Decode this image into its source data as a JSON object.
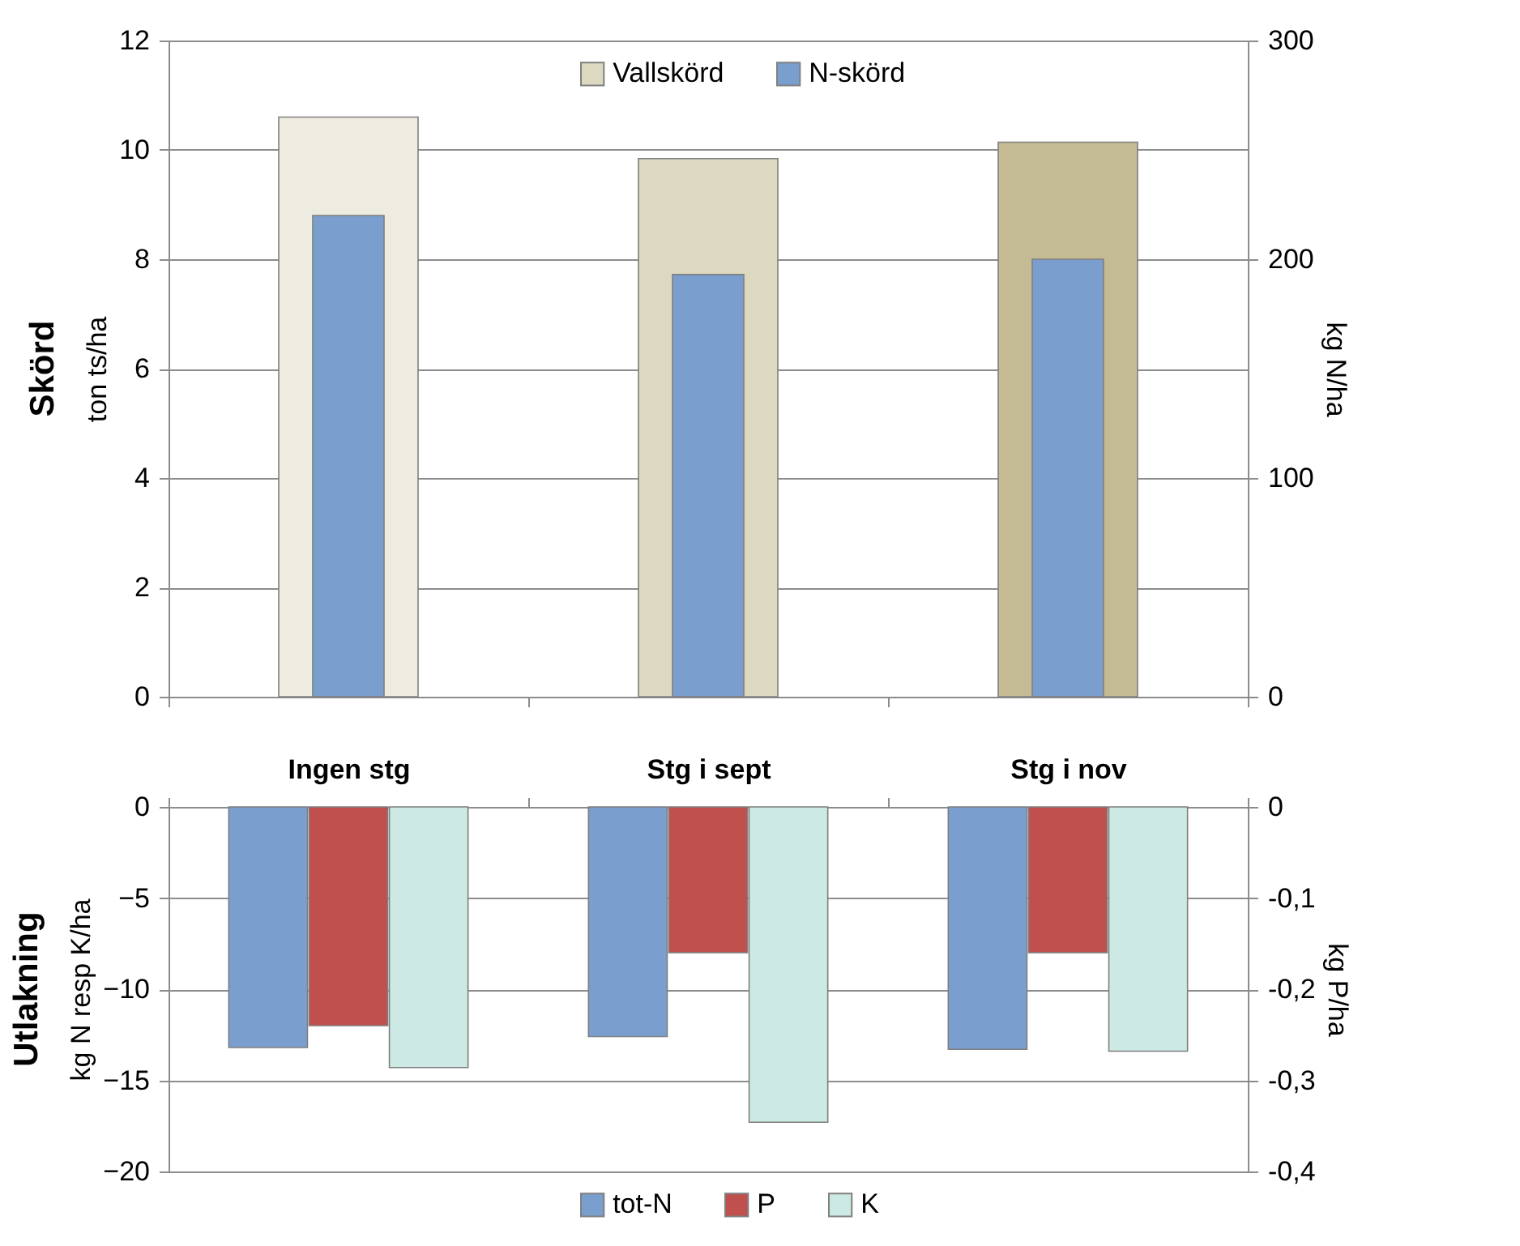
{
  "chart_data": [
    {
      "type": "bar",
      "title": "Skörd",
      "ylabel": "ton ts/ha",
      "y2label": "kg N/ha",
      "categories": [
        null,
        null,
        null
      ],
      "series": [
        {
          "name": "Vallskörd",
          "color": "#ddd8c0",
          "colors": [
            "#eeebe0",
            "#ddd8c0",
            "#c4bb94"
          ],
          "values": [
            10.6,
            9.84,
            10.14
          ]
        },
        {
          "name": "N-skörd",
          "color": "#7a9fcf",
          "values": [
            220,
            193,
            200
          ],
          "axis": "y2"
        }
      ],
      "ylim": [
        0,
        12
      ],
      "yticks": [
        0,
        2,
        4,
        6,
        8,
        10,
        12
      ],
      "y2lim": [
        0,
        300
      ],
      "y2ticks": [
        0,
        100,
        200,
        300
      ],
      "grid": "y",
      "legend": "top"
    },
    {
      "type": "bar",
      "title": "Utlakning",
      "ylabel": "kg N resp K/ha",
      "y2label": "kg P/ha",
      "categories": [
        "Ingen stg",
        "Stg i sept",
        "Stg i nov"
      ],
      "series": [
        {
          "name": "tot-N",
          "color": "#7a9fcf",
          "values": [
            -13.2,
            -12.6,
            -13.3
          ]
        },
        {
          "name": "P",
          "color": "#c0504d",
          "values": [
            -0.24,
            -0.16,
            -0.16
          ],
          "axis": "y2"
        },
        {
          "name": "K",
          "color": "#cce9e3",
          "values": [
            -14.3,
            -17.3,
            -13.4
          ]
        }
      ],
      "ylim": [
        -20,
        0
      ],
      "yticks": [
        0,
        -5,
        -10,
        -15,
        -20
      ],
      "y2lim": [
        -0.4,
        0
      ],
      "y2ticks": [
        {
          "value": 0,
          "label": "0"
        },
        {
          "value": -0.1,
          "label": "-0,1"
        },
        {
          "value": -0.2,
          "label": "-0,2"
        },
        {
          "value": -0.3,
          "label": "-0,3"
        },
        {
          "value": -0.4,
          "label": "-0,4"
        }
      ],
      "grid": "y",
      "legend": "bottom"
    }
  ]
}
